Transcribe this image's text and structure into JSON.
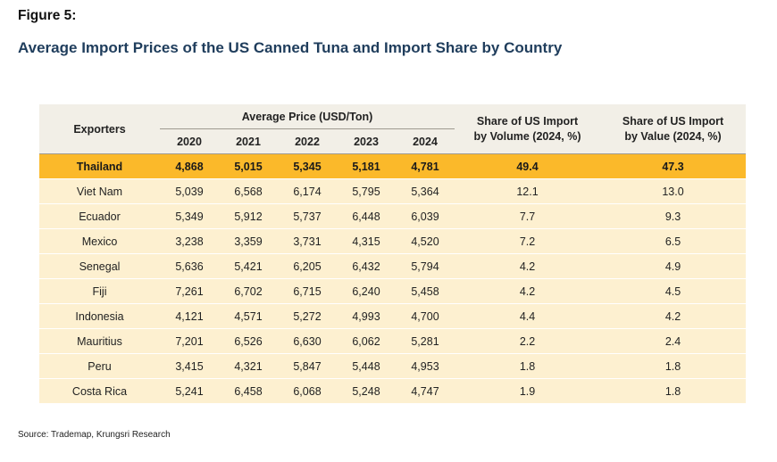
{
  "figure_label": "Figure 5:",
  "title": "Average Import Prices of the US Canned Tuna and Import Share by Country",
  "headers": {
    "exporters": "Exporters",
    "avg_price": "Average Price (USD/Ton)",
    "years": [
      "2020",
      "2021",
      "2022",
      "2023",
      "2024"
    ],
    "share_volume_line1": "Share of US Import",
    "share_volume_line2": "by Volume (2024, %)",
    "share_value_line1": "Share of US Import",
    "share_value_line2": "by Value (2024, %)"
  },
  "highlight_color": "#fbb92a",
  "rows": [
    {
      "country": "Thailand",
      "p2020": "4,868",
      "p2021": "5,015",
      "p2022": "5,345",
      "p2023": "5,181",
      "p2024": "4,781",
      "vol": "49.4",
      "val": "47.3"
    },
    {
      "country": "Viet Nam",
      "p2020": "5,039",
      "p2021": "6,568",
      "p2022": "6,174",
      "p2023": "5,795",
      "p2024": "5,364",
      "vol": "12.1",
      "val": "13.0"
    },
    {
      "country": "Ecuador",
      "p2020": "5,349",
      "p2021": "5,912",
      "p2022": "5,737",
      "p2023": "6,448",
      "p2024": "6,039",
      "vol": "7.7",
      "val": "9.3"
    },
    {
      "country": "Mexico",
      "p2020": "3,238",
      "p2021": "3,359",
      "p2022": "3,731",
      "p2023": "4,315",
      "p2024": "4,520",
      "vol": "7.2",
      "val": "6.5"
    },
    {
      "country": "Senegal",
      "p2020": "5,636",
      "p2021": "5,421",
      "p2022": "6,205",
      "p2023": "6,432",
      "p2024": "5,794",
      "vol": "4.2",
      "val": "4.9"
    },
    {
      "country": "Fiji",
      "p2020": "7,261",
      "p2021": "6,702",
      "p2022": "6,715",
      "p2023": "6,240",
      "p2024": "5,458",
      "vol": "4.2",
      "val": "4.5"
    },
    {
      "country": "Indonesia",
      "p2020": "4,121",
      "p2021": "4,571",
      "p2022": "5,272",
      "p2023": "4,993",
      "p2024": "4,700",
      "vol": "4.4",
      "val": "4.2"
    },
    {
      "country": "Mauritius",
      "p2020": "7,201",
      "p2021": "6,526",
      "p2022": "6,630",
      "p2023": "6,062",
      "p2024": "5,281",
      "vol": "2.2",
      "val": "2.4"
    },
    {
      "country": "Peru",
      "p2020": "3,415",
      "p2021": "4,321",
      "p2022": "5,847",
      "p2023": "5,448",
      "p2024": "4,953",
      "vol": "1.8",
      "val": "1.8"
    },
    {
      "country": "Costa Rica",
      "p2020": "5,241",
      "p2021": "6,458",
      "p2022": "6,068",
      "p2023": "5,248",
      "p2024": "4,747",
      "vol": "1.9",
      "val": "1.8"
    }
  ],
  "source": "Source: Trademap, Krungsri Research"
}
